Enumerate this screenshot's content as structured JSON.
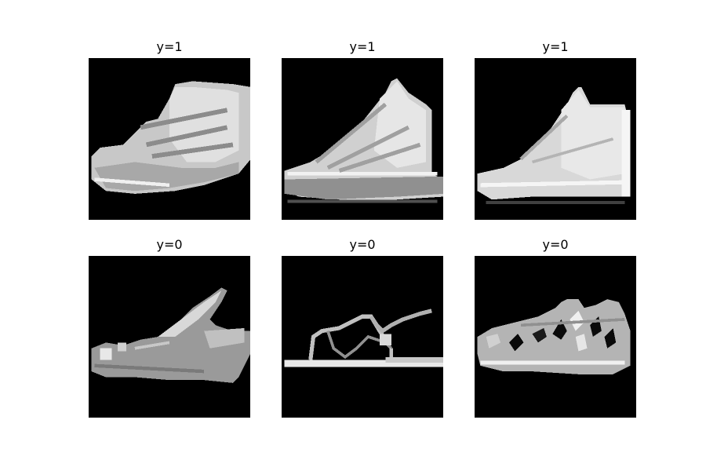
{
  "panels": [
    {
      "title": "y=1",
      "content": "high-top sneaker"
    },
    {
      "title": "y=1",
      "content": "high-top sneaker"
    },
    {
      "title": "y=1",
      "content": "high-top sneaker"
    },
    {
      "title": "y=0",
      "content": "strappy sandal"
    },
    {
      "title": "y=0",
      "content": "thin strap sandal"
    },
    {
      "title": "y=0",
      "content": "caged sandal"
    }
  ]
}
